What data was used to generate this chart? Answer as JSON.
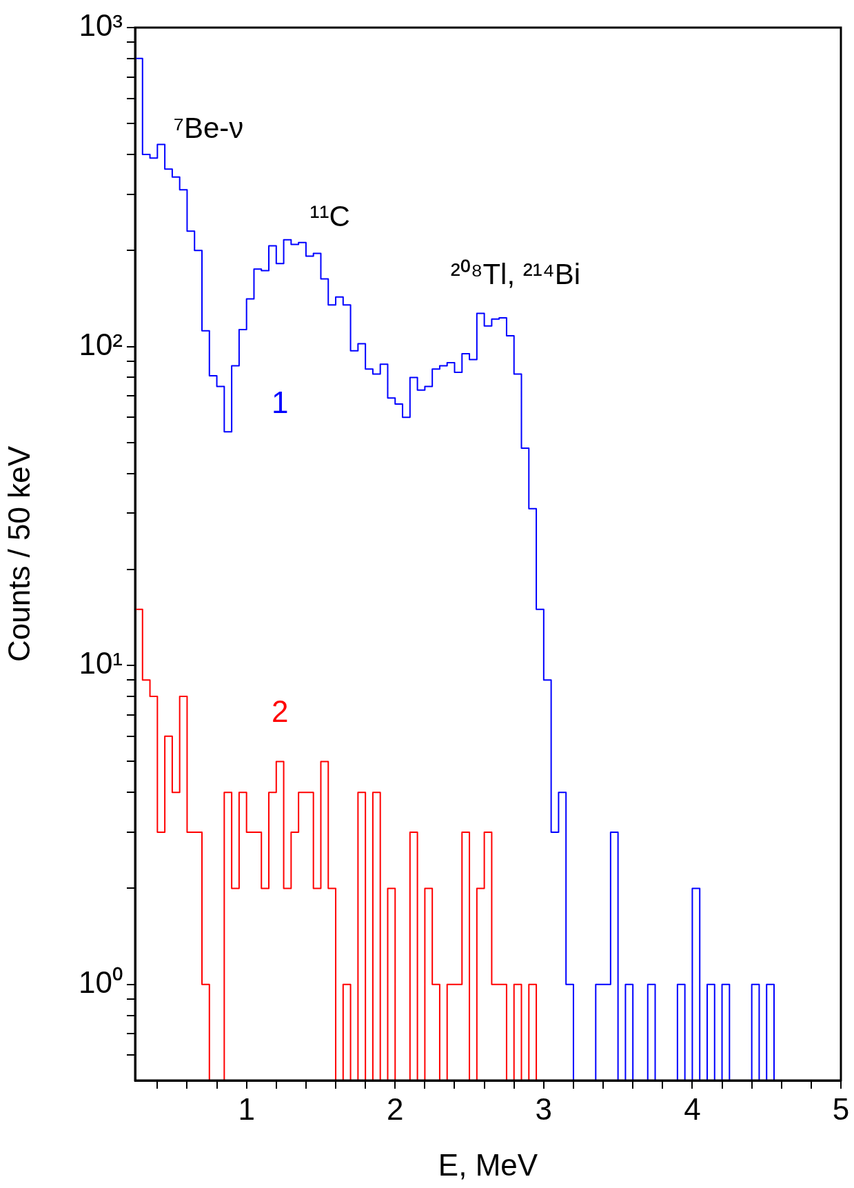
{
  "chart_data": {
    "type": "histogram",
    "xlabel": "E, MeV",
    "ylabel": "Counts / 50 keV",
    "log": "y",
    "grid": false,
    "bins": [
      0.25,
      0.3,
      0.35,
      0.4,
      0.45,
      0.5,
      0.55,
      0.6,
      0.65,
      0.7,
      0.75,
      0.8,
      0.85,
      0.9,
      0.95,
      1,
      1.05,
      1.1,
      1.15,
      1.2,
      1.25,
      1.3,
      1.35,
      1.4,
      1.45,
      1.5,
      1.55,
      1.6,
      1.65,
      1.7,
      1.75,
      1.8,
      1.85,
      1.9,
      1.95,
      2,
      2.05,
      2.1,
      2.15,
      2.2,
      2.25,
      2.3,
      2.35,
      2.4,
      2.45,
      2.5,
      2.55,
      2.6,
      2.65,
      2.7,
      2.75,
      2.8,
      2.85,
      2.9,
      2.95,
      3,
      3.05,
      3.1,
      3.15,
      3.2,
      3.25,
      3.3,
      3.35,
      3.4,
      3.45,
      3.5,
      3.55,
      3.6,
      3.65,
      3.7,
      3.75,
      3.8,
      3.85,
      3.9,
      3.95,
      4,
      4.05,
      4.1,
      4.15,
      4.2,
      4.25,
      4.3,
      4.35,
      4.4,
      4.45,
      4.5,
      4.55
    ],
    "series": [
      {
        "name": "1",
        "color": "#0000ff",
        "values": [
          800,
          400,
          390,
          430,
          360,
          340,
          310,
          230,
          200,
          112,
          81,
          75,
          54,
          87,
          113,
          141,
          175,
          173,
          207,
          182,
          216,
          209,
          212,
          192,
          196,
          163,
          135,
          143,
          135,
          97,
          102,
          85,
          82,
          88,
          69,
          66,
          60,
          80,
          73,
          75,
          85,
          87,
          89,
          83,
          95,
          91,
          127,
          116,
          122,
          123,
          108,
          82,
          48,
          31,
          15,
          9,
          3,
          4,
          1,
          null,
          null,
          null,
          1,
          1,
          3,
          null,
          1,
          null,
          null,
          1,
          null,
          null,
          null,
          1,
          null,
          2,
          null,
          1,
          null,
          1,
          null,
          null,
          null,
          1,
          null,
          1
        ]
      },
      {
        "name": "2",
        "color": "#ff0000",
        "values": [
          15,
          9,
          8,
          3,
          6,
          4,
          8,
          3,
          3,
          1,
          null,
          null,
          4,
          2,
          4,
          3,
          3,
          2,
          4,
          5,
          2,
          3,
          4,
          4,
          2,
          5,
          2,
          null,
          1,
          null,
          4,
          null,
          4,
          null,
          2,
          null,
          null,
          3,
          null,
          2,
          1,
          null,
          1,
          1,
          3,
          null,
          2,
          3,
          1,
          1,
          null,
          1,
          null,
          1,
          null,
          null,
          null,
          null,
          null,
          null,
          null,
          null,
          null,
          null,
          null,
          null,
          null,
          null,
          null,
          null,
          null,
          null,
          null,
          null,
          null,
          null,
          null,
          null,
          null,
          null,
          null,
          null,
          null,
          null,
          null,
          null
        ]
      }
    ],
    "xlim": [
      0.25,
      5
    ],
    "xticks": [
      {
        "value": 0.4,
        "label": null
      },
      {
        "value": 0.6,
        "label": null
      },
      {
        "value": 0.8,
        "label": null
      },
      1,
      {
        "value": 1.2,
        "label": null
      },
      {
        "value": 1.4,
        "label": null
      },
      {
        "value": 1.6,
        "label": null
      },
      {
        "value": 1.8,
        "label": null
      },
      2,
      {
        "value": 2.2,
        "label": null
      },
      {
        "value": 2.4,
        "label": null
      },
      {
        "value": 2.6,
        "label": null
      },
      {
        "value": 2.8,
        "label": null
      },
      3,
      {
        "value": 3.2,
        "label": null
      },
      {
        "value": 3.4,
        "label": null
      },
      {
        "value": 3.6,
        "label": null
      },
      {
        "value": 3.8,
        "label": null
      },
      4,
      {
        "value": 4.2,
        "label": null
      },
      {
        "value": 4.4,
        "label": null
      },
      {
        "value": 4.6,
        "label": null
      },
      {
        "value": 4.8,
        "label": null
      },
      5
    ],
    "ylim": [
      0.5,
      1000
    ],
    "yticks": [
      {
        "value": 0.6,
        "label": null
      },
      {
        "value": 0.7,
        "label": null
      },
      {
        "value": 0.8,
        "label": null
      },
      {
        "value": 0.9,
        "label": null
      },
      {
        "value": 1,
        "label": "10⁰"
      },
      {
        "value": 2,
        "label": null
      },
      {
        "value": 3,
        "label": null
      },
      {
        "value": 4,
        "label": null
      },
      {
        "value": 5,
        "label": null
      },
      {
        "value": 6,
        "label": null
      },
      {
        "value": 7,
        "label": null
      },
      {
        "value": 8,
        "label": null
      },
      {
        "value": 9,
        "label": null
      },
      {
        "value": 10,
        "label": "10¹"
      },
      {
        "value": 20,
        "label": null
      },
      {
        "value": 30,
        "label": null
      },
      {
        "value": 40,
        "label": null
      },
      {
        "value": 50,
        "label": null
      },
      {
        "value": 60,
        "label": null
      },
      {
        "value": 70,
        "label": null
      },
      {
        "value": 80,
        "label": null
      },
      {
        "value": 90,
        "label": null
      },
      {
        "value": 100,
        "label": "10²"
      },
      {
        "value": 200,
        "label": null
      },
      {
        "value": 300,
        "label": null
      },
      {
        "value": 400,
        "label": null
      },
      {
        "value": 500,
        "label": null
      },
      {
        "value": 600,
        "label": null
      },
      {
        "value": 700,
        "label": null
      },
      {
        "value": 800,
        "label": null
      },
      {
        "value": 900,
        "label": null
      },
      {
        "value": 1000,
        "label": "10³"
      }
    ],
    "annotations": [
      "⁷Be-ν",
      "¹¹C",
      "²⁰⁸Tl, ²¹⁴Bi"
    ]
  }
}
